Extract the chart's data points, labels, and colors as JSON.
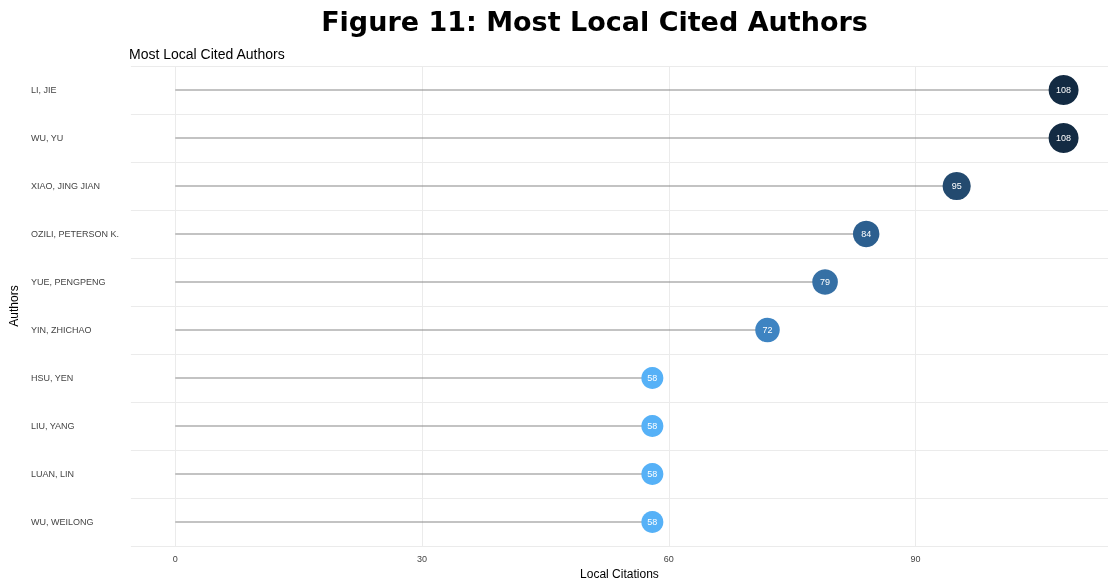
{
  "chart_data": {
    "type": "lollipop",
    "title": "Figure 11: Most Local Cited Authors",
    "subtitle": "Most Local Cited Authors",
    "xlabel": "Local Citations",
    "ylabel": "Authors",
    "orientation": "horizontal",
    "categories": [
      "LI, JIE",
      "WU, YU",
      "XIAO, JING JIAN",
      "OZILI, PETERSON K.",
      "YUE, PENGPENG",
      "YIN, ZHICHAO",
      "HSU, YEN",
      "LIU, YANG",
      "LUAN, LIN",
      "WU, WEILONG"
    ],
    "values": [
      108,
      108,
      95,
      84,
      79,
      72,
      58,
      58,
      58,
      58
    ],
    "sizes": [
      1,
      1,
      0.88,
      0.78,
      0.73,
      0.67,
      0.54,
      0.54,
      0.54,
      0.54
    ],
    "colors": [
      "#132b43",
      "#132b43",
      "#234a6f",
      "#2c5f8f",
      "#3670a5",
      "#3e84c2",
      "#56b1f7",
      "#56b1f7",
      "#56b1f7",
      "#56b1f7"
    ],
    "xlim": [
      -5.4,
      113.4
    ],
    "xticks": [
      0,
      30,
      60,
      90
    ],
    "grid": true,
    "data_labels": true
  }
}
